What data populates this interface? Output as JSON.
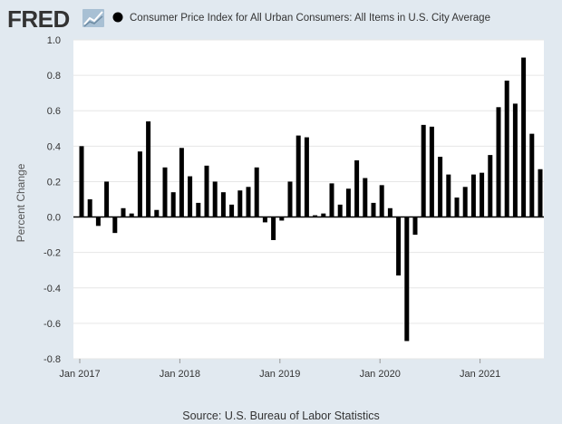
{
  "header": {
    "logo_text": "FRED",
    "legend_label": "Consumer Price Index for All Urban Consumers: All Items in U.S. City Average"
  },
  "source_text": "Source: U.S. Bureau of Labor Statistics",
  "colors": {
    "background": "#e1e9f0",
    "plot_background": "#ffffff",
    "bar": "#000000",
    "grid": "#e6e6e6",
    "text": "#333333",
    "axis_label": "#555555"
  },
  "chart_data": {
    "type": "bar",
    "title": "",
    "ylabel": "Percent Change",
    "xlabel": "",
    "ylim": [
      -0.8,
      1.0
    ],
    "yticks": [
      1.0,
      0.8,
      0.6,
      0.4,
      0.2,
      0.0,
      -0.2,
      -0.4,
      -0.6,
      -0.8
    ],
    "ytick_labels": [
      "1.0",
      "0.8",
      "0.6",
      "0.4",
      "0.2",
      "0.0",
      "-0.2",
      "-0.4",
      "-0.6",
      "-0.8"
    ],
    "grid": true,
    "legend_position": "top",
    "xticks": [
      {
        "label": "Jan 2017",
        "index": 0
      },
      {
        "label": "Jan 2018",
        "index": 12
      },
      {
        "label": "Jan 2019",
        "index": 24
      },
      {
        "label": "Jan 2020",
        "index": 36
      },
      {
        "label": "Jan 2021",
        "index": 48
      }
    ],
    "categories": [
      "2017-01",
      "2017-02",
      "2017-03",
      "2017-04",
      "2017-05",
      "2017-06",
      "2017-07",
      "2017-08",
      "2017-09",
      "2017-10",
      "2017-11",
      "2017-12",
      "2018-01",
      "2018-02",
      "2018-03",
      "2018-04",
      "2018-05",
      "2018-06",
      "2018-07",
      "2018-08",
      "2018-09",
      "2018-10",
      "2018-11",
      "2018-12",
      "2019-01",
      "2019-02",
      "2019-03",
      "2019-04",
      "2019-05",
      "2019-06",
      "2019-07",
      "2019-08",
      "2019-09",
      "2019-10",
      "2019-11",
      "2019-12",
      "2020-01",
      "2020-02",
      "2020-03",
      "2020-04",
      "2020-05",
      "2020-06",
      "2020-07",
      "2020-08",
      "2020-09",
      "2020-10",
      "2020-11",
      "2020-12",
      "2021-01",
      "2021-02",
      "2021-03",
      "2021-04",
      "2021-05",
      "2021-06",
      "2021-07",
      "2021-08"
    ],
    "series": [
      {
        "values": [
          0.4,
          0.1,
          -0.05,
          0.2,
          -0.09,
          0.05,
          0.02,
          0.37,
          0.54,
          0.04,
          0.28,
          0.14,
          0.39,
          0.23,
          0.08,
          0.29,
          0.2,
          0.14,
          0.07,
          0.15,
          0.17,
          0.28,
          -0.03,
          -0.13,
          -0.02,
          0.2,
          0.46,
          0.45,
          0.01,
          0.02,
          0.19,
          0.07,
          0.16,
          0.32,
          0.22,
          0.08,
          0.18,
          0.05,
          -0.33,
          -0.7,
          -0.1,
          0.52,
          0.51,
          0.34,
          0.24,
          0.11,
          0.17,
          0.24,
          0.25,
          0.35,
          0.62,
          0.77,
          0.64,
          0.9,
          0.47,
          0.27
        ]
      }
    ]
  }
}
